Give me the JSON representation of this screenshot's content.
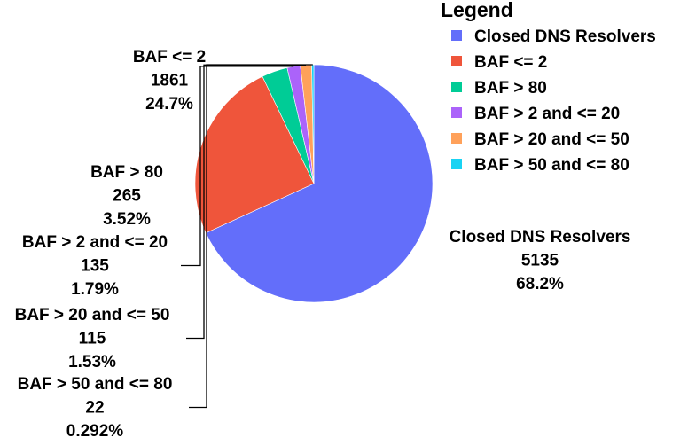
{
  "chart_data": {
    "type": "pie",
    "legend_title": "Legend",
    "legend_position": "top-right",
    "slices": [
      {
        "label": "Closed DNS Resolvers",
        "value": 5135,
        "percent": "68.2%",
        "color": "#636efa"
      },
      {
        "label": "BAF <= 2",
        "value": 1861,
        "percent": "24.7%",
        "color": "#ef553b"
      },
      {
        "label": "BAF > 80",
        "value": 265,
        "percent": "3.52%",
        "color": "#00cc96"
      },
      {
        "label": "BAF > 2 and <= 20",
        "value": 135,
        "percent": "1.79%",
        "color": "#ab63fa"
      },
      {
        "label": "BAF > 20 and <= 50",
        "value": 115,
        "percent": "1.53%",
        "color": "#ffa15a"
      },
      {
        "label": "BAF > 50 and <= 80",
        "value": 22,
        "percent": "0.292%",
        "color": "#19d3f3"
      }
    ]
  }
}
